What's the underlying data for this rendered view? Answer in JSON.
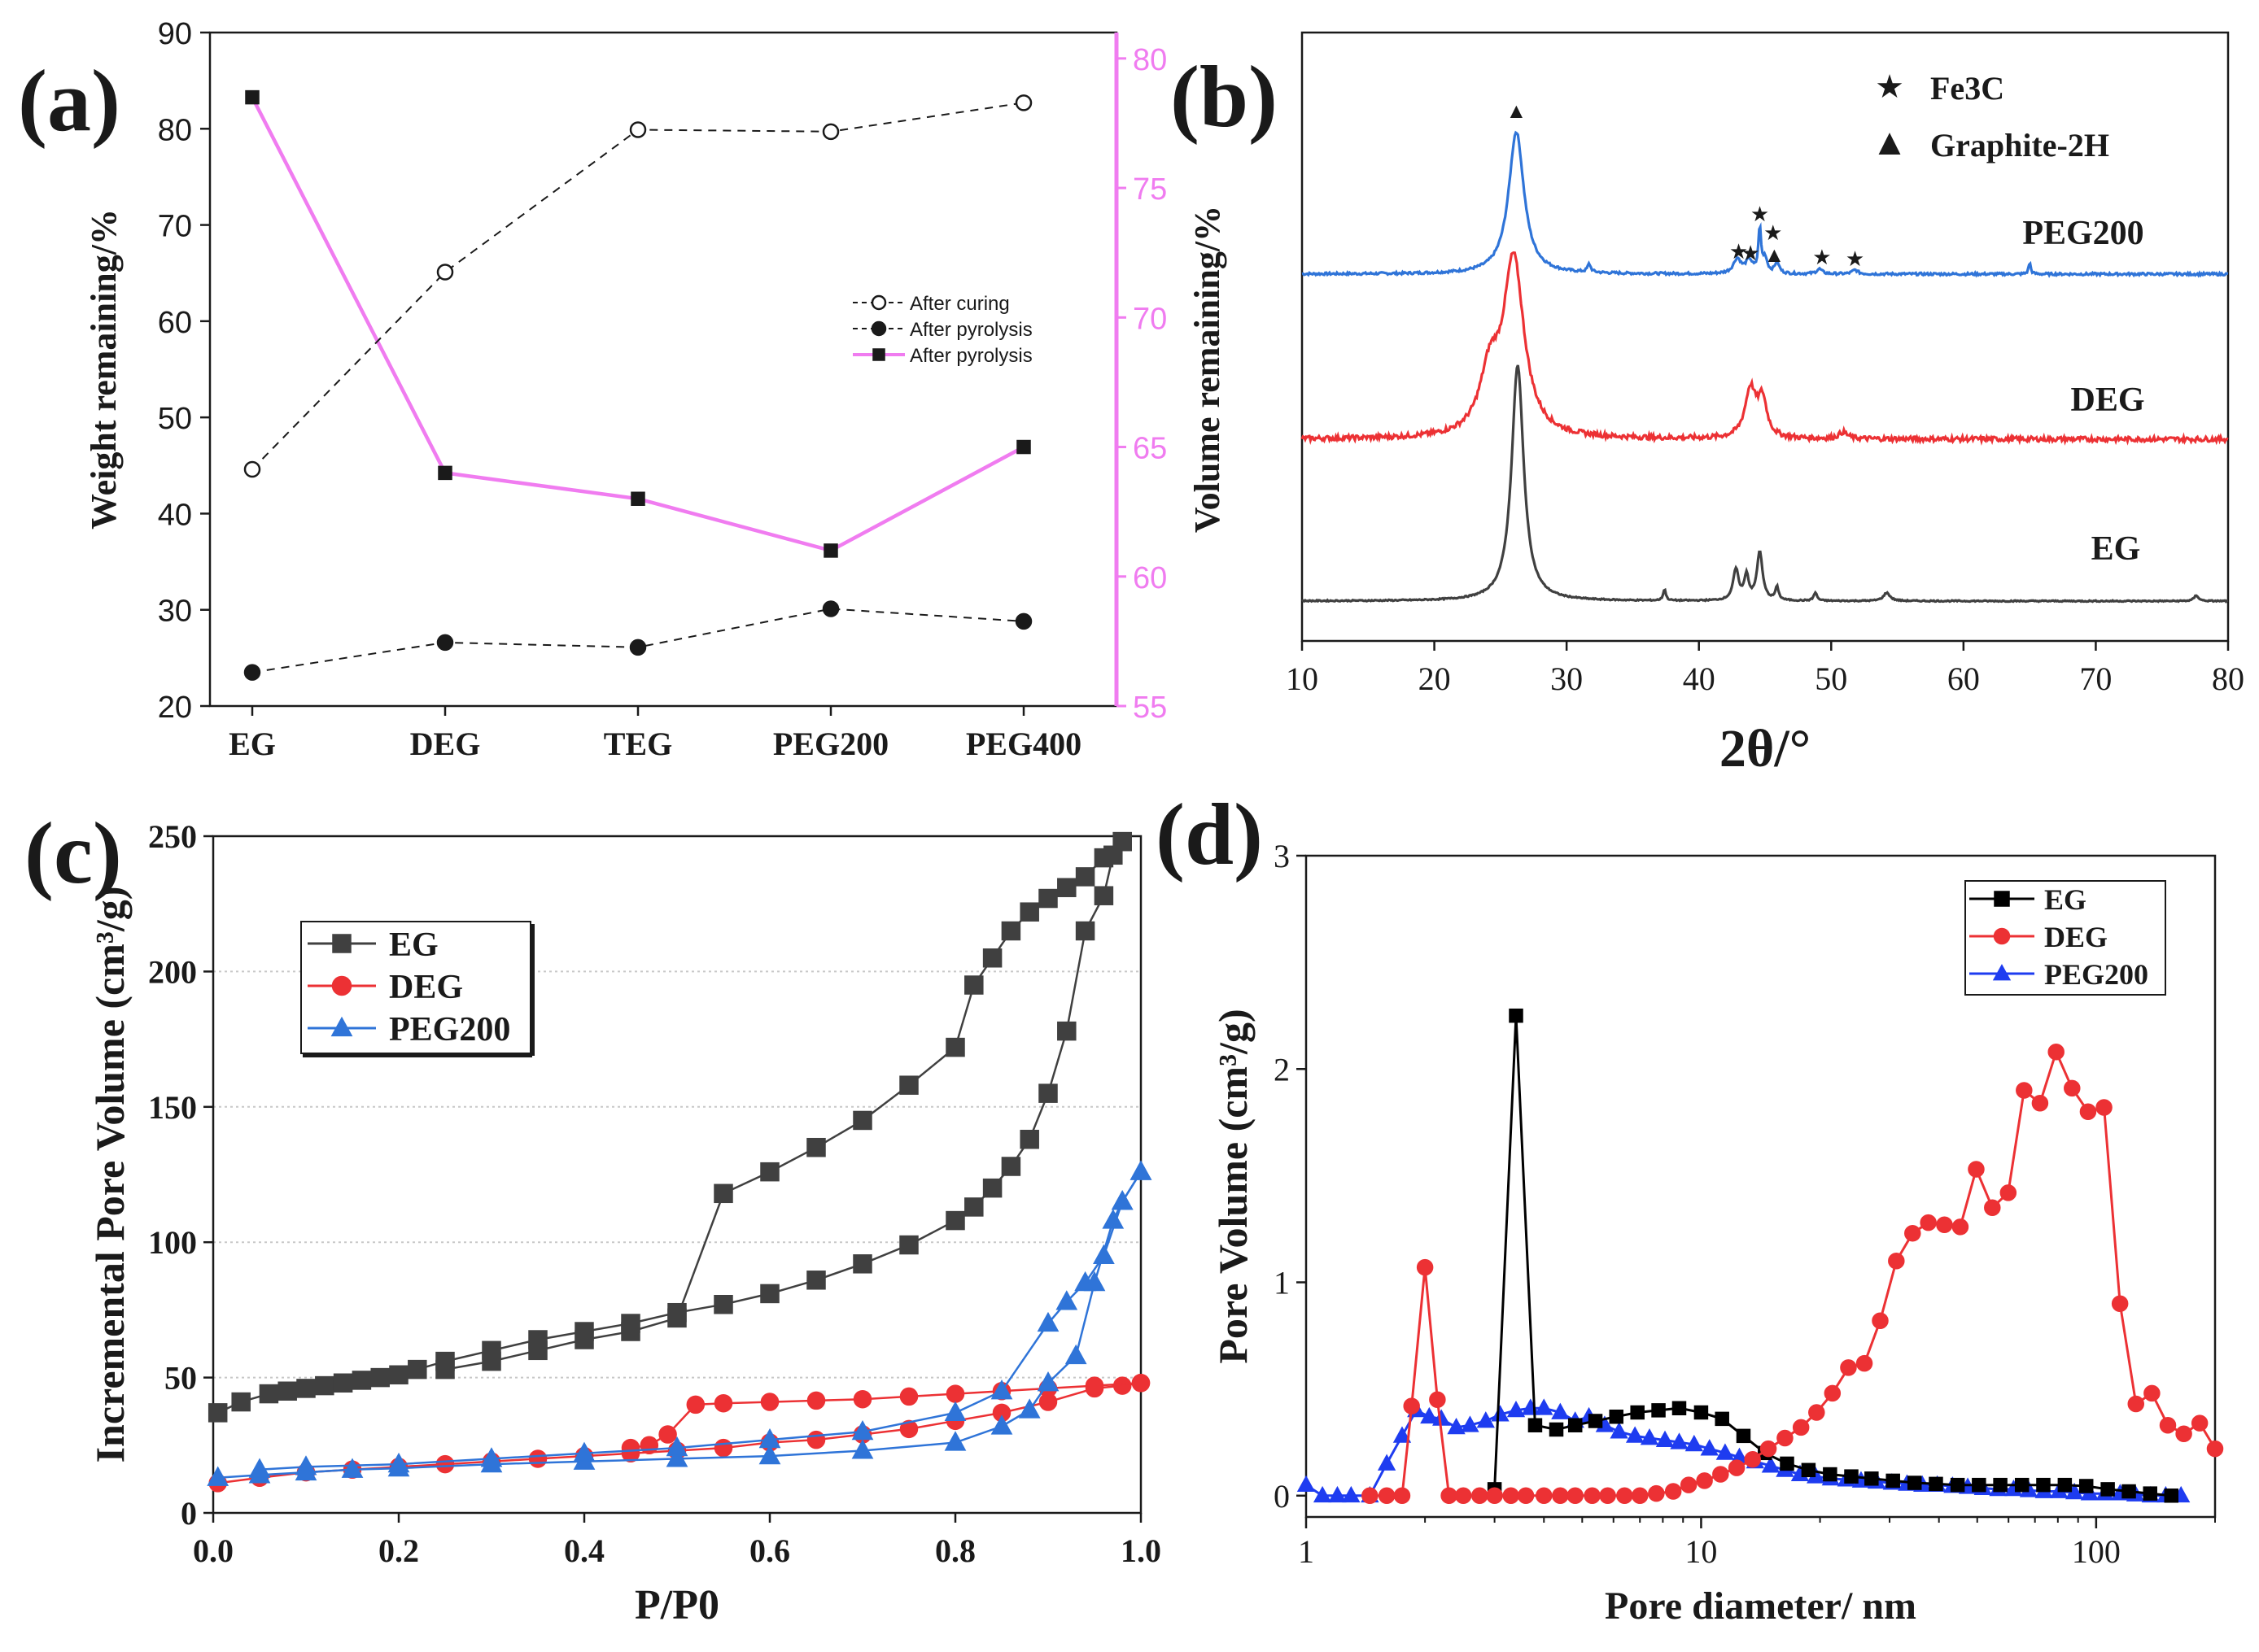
{
  "colors": {
    "black": "#1a1a1a",
    "magenta": "#f07cf0",
    "gray_series": "#404040",
    "red_series": "#ec3134",
    "blue_series": "#2f74d8",
    "blue_filled": "#1e3cf0",
    "black_series": "#000000",
    "grid": "#c8c8c8"
  },
  "chart_data": [
    {
      "panel": "a",
      "panel_label": "(a)",
      "type": "line",
      "categories": [
        "EG",
        "DEG",
        "TEG",
        "PEG200",
        "PEG400"
      ],
      "y_left": {
        "label": "Weight remaining/%",
        "lim": [
          20,
          90
        ],
        "ticks": [
          "20",
          "30",
          "40",
          "50",
          "60",
          "70",
          "80",
          "90"
        ]
      },
      "y_right": {
        "label": "Volume remaining/%",
        "lim": [
          55,
          81
        ],
        "ticks": [
          "55",
          "60",
          "65",
          "70",
          "75",
          "80"
        ]
      },
      "legend_position": "center-right",
      "series": [
        {
          "name": "After curing",
          "axis": "left",
          "style": "dashed-open-circle",
          "values": [
            44.6,
            65.1,
            79.9,
            79.7,
            82.7
          ]
        },
        {
          "name": "After pyrolysis",
          "axis": "left",
          "style": "dashed-filled-circle",
          "values": [
            23.5,
            26.6,
            26.1,
            30.1,
            28.8
          ]
        },
        {
          "name": "After pyrolysis",
          "axis": "right",
          "style": "solid-square",
          "values": [
            78.5,
            64.0,
            63.0,
            61.0,
            65.0
          ]
        }
      ]
    },
    {
      "panel": "b",
      "panel_label": "(b)",
      "type": "line",
      "xlabel": "2θ/°",
      "xlim": [
        10,
        80
      ],
      "x_ticks": [
        "10",
        "20",
        "30",
        "40",
        "50",
        "60",
        "70",
        "80"
      ],
      "legend": [
        {
          "symbol": "★",
          "label": "Fe3C"
        },
        {
          "symbol": "▲",
          "label": "Graphite-2H"
        }
      ],
      "series": [
        {
          "name": "PEG200",
          "peaks": [
            26.2,
            31.7,
            42.9,
            43.8,
            44.6,
            45.0,
            45.9,
            49.1,
            51.8,
            65.0
          ],
          "marker_annotations": [
            {
              "x": 26.2,
              "symbol": "▲"
            },
            {
              "x": 43.0,
              "symbol": "★"
            },
            {
              "x": 43.9,
              "symbol": "★"
            },
            {
              "x": 44.6,
              "symbol": "★"
            },
            {
              "x": 45.6,
              "symbol": "★"
            },
            {
              "x": 45.7,
              "symbol": "▲"
            },
            {
              "x": 49.3,
              "symbol": "★"
            },
            {
              "x": 51.8,
              "symbol": "★"
            }
          ]
        },
        {
          "name": "DEG",
          "peaks": [
            26.0,
            43.9,
            44.8,
            50.9
          ]
        },
        {
          "name": "EG",
          "peaks": [
            26.3,
            37.4,
            42.8,
            43.6,
            44.6,
            45.9,
            48.8,
            54.2,
            77.6
          ]
        }
      ]
    },
    {
      "panel": "c",
      "panel_label": "(c)",
      "type": "line",
      "xlabel": "P/P0",
      "ylabel": "Incremental Pore Volume (cm³/g)",
      "xlim": [
        0,
        1
      ],
      "ylim": [
        0,
        250
      ],
      "x_ticks": [
        "0.0",
        "0.2",
        "0.4",
        "0.6",
        "0.8",
        "1.0"
      ],
      "y_ticks": [
        "0",
        "50",
        "100",
        "150",
        "200",
        "250"
      ],
      "grid": "horizontal dotted",
      "legend_position": "top-left",
      "series": [
        {
          "name": "EG",
          "marker": "square",
          "adsorption": {
            "x": [
              0.005,
              0.03,
              0.06,
              0.08,
              0.1,
              0.12,
              0.14,
              0.16,
              0.18,
              0.2,
              0.22,
              0.25,
              0.3,
              0.35,
              0.4,
              0.45,
              0.5,
              0.55,
              0.6,
              0.65,
              0.7,
              0.75,
              0.8,
              0.82,
              0.84,
              0.86,
              0.88,
              0.9,
              0.92,
              0.94,
              0.96,
              0.97,
              0.98
            ],
            "y": [
              37,
              41,
              44,
              45,
              46,
              47,
              48,
              49,
              50,
              51,
              53,
              56,
              60,
              64,
              67,
              70,
              74,
              77,
              81,
              86,
              92,
              99,
              108,
              113,
              120,
              128,
              138,
              155,
              178,
              215,
              228,
              243,
              248
            ]
          },
          "desorption": {
            "x": [
              0.98,
              0.96,
              0.94,
              0.92,
              0.9,
              0.88,
              0.86,
              0.84,
              0.82,
              0.8,
              0.75,
              0.7,
              0.65,
              0.6,
              0.55,
              0.5,
              0.45,
              0.4,
              0.35,
              0.3,
              0.25
            ],
            "y": [
              248,
              242,
              235,
              231,
              227,
              222,
              215,
              205,
              195,
              172,
              158,
              145,
              135,
              126,
              118,
              72,
              67,
              64,
              60,
              56,
              53
            ]
          }
        },
        {
          "name": "DEG",
          "marker": "circle",
          "adsorption": {
            "x": [
              0.005,
              0.05,
              0.1,
              0.15,
              0.2,
              0.25,
              0.3,
              0.35,
              0.4,
              0.45,
              0.5,
              0.55,
              0.6,
              0.65,
              0.7,
              0.75,
              0.8,
              0.85,
              0.9,
              0.95,
              0.98,
              1.0
            ],
            "y": [
              11,
              13,
              15,
              16,
              17,
              18,
              19,
              20,
              21,
              22,
              23,
              24,
              26,
              27,
              29,
              31,
              34,
              37,
              41,
              46,
              47,
              48
            ]
          },
          "desorption": {
            "x": [
              1.0,
              0.95,
              0.9,
              0.85,
              0.8,
              0.75,
              0.7,
              0.65,
              0.6,
              0.55,
              0.52,
              0.49,
              0.47,
              0.45
            ],
            "y": [
              48,
              47,
              46,
              45,
              44,
              43,
              42,
              41.5,
              41,
              40.5,
              40,
              29,
              25,
              24
            ]
          }
        },
        {
          "name": "PEG200",
          "marker": "triangle",
          "adsorption": {
            "x": [
              0.005,
              0.05,
              0.1,
              0.15,
              0.2,
              0.3,
              0.4,
              0.5,
              0.6,
              0.7,
              0.8,
              0.85,
              0.88,
              0.9,
              0.93,
              0.95,
              0.97,
              0.98,
              1.0
            ],
            "y": [
              13,
              14,
              15,
              16,
              16.5,
              18,
              19,
              20,
              21,
              23,
              26,
              32,
              38,
              48,
              58,
              85,
              108,
              115,
              126
            ]
          },
          "desorption": {
            "x": [
              1.0,
              0.98,
              0.96,
              0.94,
              0.92,
              0.9,
              0.85,
              0.8,
              0.7,
              0.6,
              0.5,
              0.4,
              0.3,
              0.2,
              0.1,
              0.05
            ],
            "y": [
              126,
              115,
              95,
              85,
              78,
              70,
              45,
              37,
              30,
              27,
              24,
              22,
              20,
              18,
              17,
              16
            ]
          }
        }
      ]
    },
    {
      "panel": "d",
      "panel_label": "(d)",
      "type": "line",
      "xlabel": "Pore diameter/ nm",
      "ylabel": "Pore Volume (cm³/g)",
      "x_scale": "log",
      "xlim": [
        1,
        200
      ],
      "ylim": [
        -0.1,
        3
      ],
      "x_ticks": [
        "1",
        "10",
        "100"
      ],
      "y_ticks": [
        "0",
        "1",
        "2",
        "3"
      ],
      "legend_position": "top-right",
      "series": [
        {
          "name": "EG",
          "marker": "square",
          "x": [
            3.0,
            3.4,
            3.8,
            4.3,
            4.8,
            5.4,
            6.1,
            6.9,
            7.8,
            8.8,
            10,
            11.3,
            12.8,
            14.5,
            16.5,
            18.7,
            21.2,
            24,
            27,
            30.6,
            34.7,
            39.3,
            44.6,
            50.5,
            57.2,
            64.9,
            73.5,
            83.3,
            94.4,
            107,
            121,
            137,
            155
          ],
          "y": [
            0.03,
            2.25,
            0.33,
            0.31,
            0.33,
            0.35,
            0.37,
            0.39,
            0.4,
            0.41,
            0.39,
            0.36,
            0.28,
            0.2,
            0.15,
            0.12,
            0.1,
            0.09,
            0.08,
            0.07,
            0.06,
            0.055,
            0.05,
            0.05,
            0.05,
            0.05,
            0.05,
            0.05,
            0.045,
            0.03,
            0.02,
            0.01,
            0.0
          ]
        },
        {
          "name": "DEG",
          "marker": "circle",
          "x": [
            1.45,
            1.6,
            1.75,
            1.85,
            2.0,
            2.15,
            2.3,
            2.5,
            2.75,
            3.0,
            3.3,
            3.6,
            4.0,
            4.4,
            4.8,
            5.3,
            5.8,
            6.4,
            7.0,
            7.7,
            8.5,
            9.3,
            10.2,
            11.2,
            12.3,
            13.5,
            14.8,
            16.3,
            17.9,
            19.6,
            21.5,
            23.6,
            25.9,
            28.4,
            31.2,
            34.3,
            37.6,
            41.3,
            45.3,
            49.7,
            54.6,
            59.9,
            65.7,
            72.1,
            79.2,
            86.9,
            95.4,
            104.7,
            114.9,
            126.1,
            138.4,
            151.9,
            166.7,
            182.9,
            200
          ],
          "y": [
            0,
            0,
            0,
            0.42,
            1.07,
            0.45,
            0.0,
            0.0,
            0.0,
            0.0,
            0.0,
            0.0,
            0.0,
            0.0,
            0.0,
            0.0,
            0.0,
            0.0,
            0.0,
            0.01,
            0.02,
            0.05,
            0.07,
            0.1,
            0.13,
            0.17,
            0.22,
            0.27,
            0.32,
            0.39,
            0.48,
            0.6,
            0.62,
            0.82,
            1.1,
            1.23,
            1.28,
            1.27,
            1.26,
            1.53,
            1.35,
            1.42,
            1.9,
            1.84,
            2.08,
            1.91,
            1.8,
            1.82,
            0.9,
            0.43,
            0.48,
            0.33,
            0.29,
            0.34,
            0.22
          ]
        },
        {
          "name": "PEG200",
          "marker": "triangle",
          "x": [
            1.0,
            1.1,
            1.2,
            1.3,
            1.45,
            1.6,
            1.75,
            1.9,
            2.05,
            2.2,
            2.4,
            2.6,
            2.85,
            3.1,
            3.4,
            3.7,
            4.0,
            4.4,
            4.8,
            5.2,
            5.7,
            6.2,
            6.8,
            7.4,
            8.1,
            8.8,
            9.6,
            10.5,
            11.5,
            12.5,
            13.7,
            15.0,
            16.3,
            17.8,
            19.5,
            21.3,
            23.3,
            25.4,
            27.8,
            30.4,
            33.2,
            36.3,
            39.6,
            43.3,
            47.3,
            51.7,
            56.5,
            61.8,
            67.5,
            73.8,
            80.6,
            88.1,
            96.3,
            105.2,
            115,
            125.7,
            137.4,
            150,
            164
          ],
          "y": [
            0.05,
            0.0,
            0.0,
            0.0,
            0.0,
            0.15,
            0.28,
            0.4,
            0.37,
            0.36,
            0.32,
            0.33,
            0.35,
            0.38,
            0.4,
            0.41,
            0.41,
            0.39,
            0.35,
            0.37,
            0.33,
            0.3,
            0.28,
            0.27,
            0.26,
            0.25,
            0.24,
            0.22,
            0.2,
            0.18,
            0.16,
            0.14,
            0.12,
            0.1,
            0.09,
            0.08,
            0.075,
            0.07,
            0.065,
            0.06,
            0.055,
            0.05,
            0.05,
            0.045,
            0.04,
            0.035,
            0.03,
            0.03,
            0.025,
            0.02,
            0.02,
            0.015,
            0.01,
            0.01,
            0.01,
            0.005,
            0.0,
            0.0,
            0.0
          ]
        }
      ]
    }
  ]
}
